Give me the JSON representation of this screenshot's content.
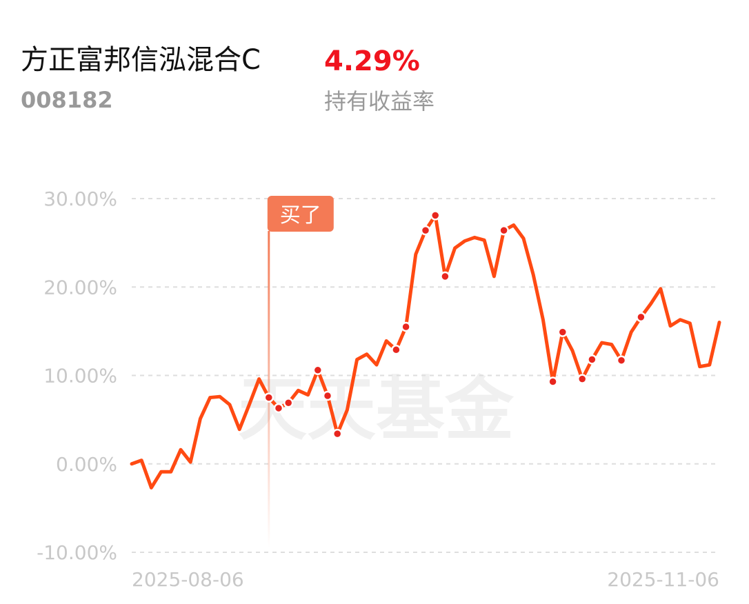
{
  "header": {
    "title": "方正富邦信泓混合C",
    "code": "008182",
    "return": "4.29%",
    "return_label": "持有收益率"
  },
  "chart_data": {
    "type": "line",
    "categories": [
      "2025-08-06",
      null,
      null,
      null,
      null,
      null,
      null,
      null,
      null,
      null,
      null,
      null,
      null,
      null,
      null,
      null,
      null,
      null,
      null,
      null,
      null,
      null,
      null,
      null,
      null,
      null,
      null,
      null,
      null,
      null,
      null,
      null,
      null,
      null,
      null,
      null,
      null,
      null,
      null,
      null,
      null,
      null,
      null,
      null,
      null,
      null,
      null,
      null,
      null,
      null,
      null,
      null,
      null,
      null,
      null,
      null,
      null,
      null,
      null,
      null,
      "2025-11-06"
    ],
    "series": [
      {
        "name": "持有收益率",
        "color": "#ff4a12",
        "values": [
          0,
          0.4,
          -2.7,
          -0.9,
          -0.9,
          1.6,
          0.2,
          5.1,
          7.5,
          7.6,
          6.7,
          3.9,
          6.7,
          9.6,
          7.5,
          6.3,
          6.9,
          8.3,
          7.8,
          10.6,
          7.7,
          3.4,
          6.1,
          11.8,
          12.4,
          11.2,
          13.9,
          12.9,
          15.5,
          23.7,
          26.4,
          28.1,
          21.2,
          24.4,
          25.2,
          25.6,
          25.3,
          21.2,
          26.4,
          27.0,
          25.5,
          21.4,
          16.3,
          9.3,
          14.9,
          12.8,
          9.6,
          11.8,
          13.7,
          13.5,
          11.7,
          14.9,
          16.6,
          18.1,
          19.8,
          15.6,
          16.3,
          15.9,
          11.0,
          11.2,
          16.0
        ]
      }
    ],
    "markers": [
      14,
      15,
      16,
      19,
      20,
      21,
      27,
      28,
      30,
      31,
      32,
      38,
      43,
      44,
      46,
      47,
      50,
      52
    ],
    "annotation": {
      "text": "买了",
      "at": 14
    },
    "watermark": "天天基金",
    "ylim": [
      -10,
      30
    ],
    "yticks": [
      {
        "value": -10,
        "label": "-10.00%"
      },
      {
        "value": 0,
        "label": "0.00%"
      },
      {
        "value": 10,
        "label": "10.00%"
      },
      {
        "value": 20,
        "label": "20.00%"
      },
      {
        "value": 30,
        "label": "30.00%"
      }
    ],
    "grid": true
  }
}
